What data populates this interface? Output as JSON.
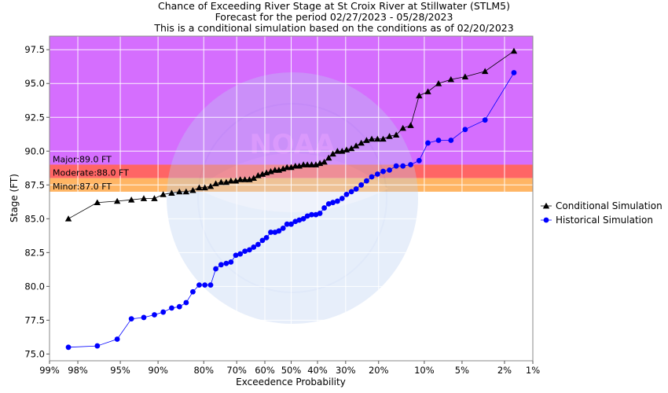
{
  "chart_data": {
    "type": "line",
    "title": [
      "Chance of Exceeding River Stage at St Croix River at Stillwater (STLM5)",
      "Forecast for the period 02/27/2023 - 05/28/2023",
      "This is a conditional simulation based on the conditions as of 02/20/2023"
    ],
    "xlabel": "Exceedence Probability",
    "ylabel": "Stage (FT)",
    "x_scale": "normal-probability",
    "x_ticks": [
      {
        "p": 99,
        "label": "99%"
      },
      {
        "p": 98,
        "label": "98%"
      },
      {
        "p": 95,
        "label": "95%"
      },
      {
        "p": 90,
        "label": "90%"
      },
      {
        "p": 80,
        "label": "80%"
      },
      {
        "p": 70,
        "label": "70%"
      },
      {
        "p": 60,
        "label": "60%"
      },
      {
        "p": 50,
        "label": "50%"
      },
      {
        "p": 40,
        "label": "40%"
      },
      {
        "p": 30,
        "label": "30%"
      },
      {
        "p": 20,
        "label": "20%"
      },
      {
        "p": 10,
        "label": "10%"
      },
      {
        "p": 5,
        "label": "5%"
      },
      {
        "p": 2,
        "label": "2%"
      },
      {
        "p": 1,
        "label": "1%"
      }
    ],
    "xlim": [
      99,
      1
    ],
    "ylim": [
      74.5,
      98.5
    ],
    "y_ticks": [
      "75.0",
      "77.5",
      "80.0",
      "82.5",
      "85.0",
      "87.5",
      "90.0",
      "92.5",
      "95.0",
      "97.5"
    ],
    "legend_position": "right",
    "flood_categories": [
      {
        "label": "Major:89.0 FT",
        "from": 89.0,
        "to": 98.5,
        "color": "#d56efe"
      },
      {
        "label": "Moderate:88.0 FT",
        "from": 88.0,
        "to": 89.0,
        "color": "#ff6565"
      },
      {
        "label": "Minor:87.0 FT",
        "from": 87.0,
        "to": 88.0,
        "color": "#ffb564"
      }
    ],
    "series": [
      {
        "name": "Conditional Simulation",
        "marker": "triangle",
        "color": "#000000",
        "x": [
          98.4,
          96.9,
          95.3,
          93.8,
          92.2,
          90.6,
          89.1,
          87.5,
          85.9,
          84.4,
          82.8,
          81.2,
          79.7,
          78.1,
          76.6,
          75.0,
          73.4,
          71.9,
          70.3,
          68.8,
          67.2,
          65.6,
          64.1,
          62.5,
          60.9,
          59.4,
          57.8,
          56.2,
          54.7,
          53.1,
          51.6,
          50.0,
          48.4,
          46.9,
          45.3,
          43.8,
          42.2,
          40.6,
          39.1,
          37.5,
          35.9,
          34.4,
          32.8,
          31.2,
          29.7,
          28.1,
          26.6,
          25.0,
          23.4,
          21.9,
          20.3,
          18.8,
          17.2,
          15.6,
          14.1,
          12.5,
          10.9,
          9.4,
          7.8,
          6.2,
          4.7,
          3.1,
          1.6
        ],
        "y": [
          85.0,
          86.2,
          86.3,
          86.4,
          86.5,
          86.5,
          86.8,
          86.9,
          87.0,
          87.0,
          87.1,
          87.3,
          87.3,
          87.4,
          87.6,
          87.7,
          87.7,
          87.8,
          87.8,
          87.9,
          87.9,
          87.9,
          88.0,
          88.2,
          88.3,
          88.4,
          88.5,
          88.6,
          88.6,
          88.7,
          88.8,
          88.8,
          88.9,
          88.9,
          89.0,
          89.0,
          89.0,
          89.0,
          89.1,
          89.2,
          89.5,
          89.8,
          90.0,
          90.0,
          90.1,
          90.2,
          90.4,
          90.6,
          90.8,
          90.9,
          90.9,
          90.9,
          91.1,
          91.2,
          91.7,
          91.9,
          94.1,
          94.4,
          95.0,
          95.3,
          95.5,
          95.9,
          97.4
        ]
      },
      {
        "name": "Historical Simulation",
        "marker": "circle",
        "color": "#0000ff",
        "x": [
          98.4,
          96.9,
          95.3,
          93.8,
          92.2,
          90.6,
          89.1,
          87.5,
          85.9,
          84.4,
          82.8,
          81.2,
          79.7,
          78.1,
          76.6,
          75.0,
          73.4,
          71.9,
          70.3,
          68.8,
          67.2,
          65.6,
          64.1,
          62.5,
          60.9,
          59.4,
          57.8,
          56.2,
          54.7,
          53.1,
          51.6,
          50.0,
          48.4,
          46.9,
          45.3,
          43.8,
          42.2,
          40.6,
          39.1,
          37.5,
          35.9,
          34.4,
          32.8,
          31.2,
          29.7,
          28.1,
          26.6,
          25.0,
          23.4,
          21.9,
          20.3,
          18.8,
          17.2,
          15.6,
          14.1,
          12.5,
          10.9,
          9.4,
          7.8,
          6.2,
          4.7,
          3.1,
          1.6
        ],
        "y": [
          75.5,
          75.6,
          76.1,
          77.6,
          77.7,
          77.9,
          78.1,
          78.4,
          78.5,
          78.8,
          79.6,
          80.1,
          80.1,
          80.1,
          81.3,
          81.6,
          81.7,
          81.8,
          82.3,
          82.4,
          82.6,
          82.7,
          82.9,
          83.1,
          83.4,
          83.6,
          84.0,
          84.0,
          84.1,
          84.3,
          84.6,
          84.6,
          84.8,
          84.9,
          85.0,
          85.2,
          85.3,
          85.3,
          85.4,
          85.8,
          86.1,
          86.2,
          86.3,
          86.5,
          86.8,
          87.0,
          87.2,
          87.5,
          87.8,
          88.1,
          88.3,
          88.5,
          88.6,
          88.9,
          88.9,
          89.0,
          89.3,
          90.6,
          90.8,
          90.8,
          91.6,
          92.3,
          95.8
        ]
      }
    ]
  }
}
